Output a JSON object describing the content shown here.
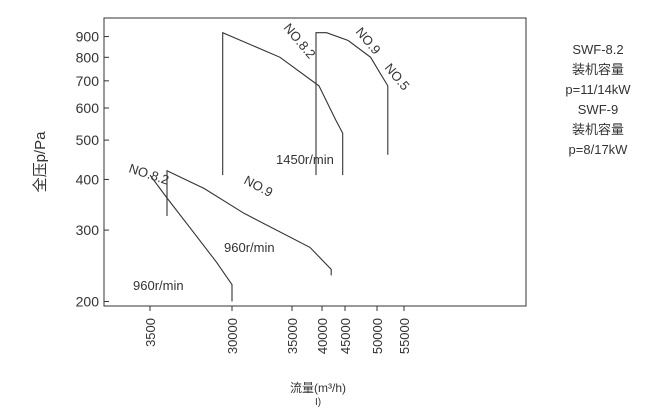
{
  "chart_data": {
    "type": "area",
    "title": "",
    "xlabel": "流量(m³/h)",
    "caption": "I)",
    "ylabel": "全压p/Pa",
    "yscale": "log",
    "ylim": [
      195,
      1000
    ],
    "y_ticks": [
      "200",
      "300",
      "400",
      "500",
      "600",
      "700",
      "800",
      "900"
    ],
    "y_tick_values": [
      200,
      300,
      400,
      500,
      600,
      700,
      800,
      900
    ],
    "x_ticks": [
      "3500",
      "30000",
      "35000",
      "40000",
      "45000",
      "50000",
      "55000"
    ],
    "axis_color": "#333333",
    "line_color": "#333333",
    "series": [
      {
        "name": "NO.8.2",
        "speed": "960r/min",
        "outline": [
          [
            3500,
            410
          ],
          [
            9000,
            360
          ],
          [
            17000,
            300
          ],
          [
            25000,
            250
          ],
          [
            30000,
            220
          ],
          [
            30000,
            200
          ]
        ]
      },
      {
        "name": "NO.9",
        "speed": "960r/min",
        "outline": [
          [
            9000,
            325
          ],
          [
            9000,
            420
          ],
          [
            21000,
            380
          ],
          [
            31000,
            330
          ],
          [
            38000,
            272
          ],
          [
            42000,
            240
          ],
          [
            42000,
            232
          ]
        ]
      },
      {
        "name": "NO.8.2",
        "speed": "1450r/min",
        "outline": [
          [
            27000,
            410
          ],
          [
            27000,
            920
          ],
          [
            34000,
            800
          ],
          [
            39500,
            680
          ],
          [
            43000,
            560
          ],
          [
            44500,
            520
          ],
          [
            44500,
            410
          ]
        ]
      },
      {
        "name": "NO.9 NO.5",
        "speed": "",
        "outline": [
          [
            39000,
            410
          ],
          [
            39000,
            920
          ],
          [
            41000,
            920
          ],
          [
            45500,
            880
          ],
          [
            49000,
            800
          ],
          [
            52000,
            680
          ],
          [
            52000,
            460
          ]
        ]
      }
    ],
    "annotations": [
      {
        "text": "NO.8.2",
        "series": 0
      },
      {
        "text": "960r/min",
        "series": 0
      },
      {
        "text": "NO.9",
        "series": 1
      },
      {
        "text": "960r/min",
        "series": 1
      },
      {
        "text": "NO.8.2",
        "series": 2
      },
      {
        "text": "1450r/min",
        "series": 2
      },
      {
        "text": "NO.9",
        "series": 3
      },
      {
        "text": "NO.5",
        "series": 3
      }
    ]
  },
  "legend_text": {
    "line1": "SWF-8.2",
    "line2": "装机容量",
    "line3": "p=11/14kW",
    "line4": "SWF-9",
    "line5": "装机容量",
    "line6": "p=8/17kW"
  }
}
